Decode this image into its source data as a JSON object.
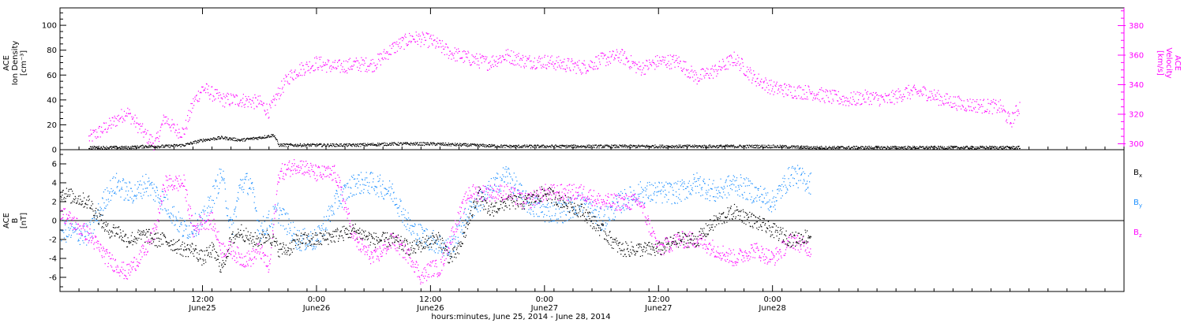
{
  "chart_data": [
    {
      "type": "scatter",
      "panel": "top",
      "ylabel_lines": [
        "ACE",
        "Ion Density",
        "[cm⁻³]"
      ],
      "ylabel_right_lines": [
        "ACE",
        "Velocity",
        "[km/s]"
      ],
      "ylim": [
        0,
        114
      ],
      "ylim_right": [
        296,
        392
      ],
      "yticks": [
        "0",
        "20",
        "40",
        "60",
        "80",
        "100"
      ],
      "yticks_right": [
        "300",
        "320",
        "340",
        "360",
        "380"
      ],
      "series": [
        {
          "axis": "left",
          "color": "#000000",
          "x_hours": [
            0,
            2,
            4,
            6,
            8,
            10,
            12,
            14,
            16,
            18,
            19.5,
            20,
            24,
            28,
            32,
            36,
            40,
            44,
            48,
            52,
            56,
            60,
            64,
            68,
            72,
            76,
            80,
            84,
            88,
            92,
            96,
            98
          ],
          "values": [
            2,
            2,
            2,
            3,
            3,
            4,
            8,
            10,
            8,
            10,
            12,
            4,
            4,
            4,
            5,
            5,
            4,
            3,
            3,
            3,
            3,
            3,
            3,
            3,
            3,
            2,
            2,
            2,
            2,
            2,
            2,
            2
          ]
        },
        {
          "axis": "right",
          "color": "#ff00ff",
          "x_hours": [
            0,
            2,
            4,
            6,
            7,
            8,
            9,
            10,
            11,
            12,
            14,
            16,
            18,
            19,
            20,
            21,
            22,
            24,
            26,
            28,
            30,
            32,
            34,
            36,
            38,
            40,
            42,
            44,
            46,
            48,
            50,
            52,
            54,
            56,
            58,
            60,
            62,
            64,
            66,
            68,
            70,
            72,
            74,
            76,
            78,
            80,
            82,
            84,
            86,
            88,
            90,
            92,
            94,
            96,
            97,
            98
          ],
          "values": [
            304,
            312,
            322,
            306,
            300,
            318,
            310,
            308,
            328,
            338,
            330,
            330,
            328,
            322,
            335,
            345,
            350,
            355,
            352,
            354,
            354,
            365,
            372,
            370,
            362,
            358,
            355,
            360,
            356,
            356,
            354,
            352,
            357,
            360,
            351,
            356,
            356,
            345,
            350,
            358,
            345,
            338,
            336,
            335,
            332,
            330,
            332,
            330,
            335,
            335,
            330,
            327,
            326,
            325,
            315,
            326
          ]
        }
      ]
    },
    {
      "type": "scatter",
      "panel": "bottom",
      "ylabel_lines": [
        "ACE",
        "B",
        "[nT]"
      ],
      "ylim": [
        -7.5,
        7.5
      ],
      "yticks": [
        "-6",
        "-4",
        "-2",
        "0",
        "2",
        "4",
        "6"
      ],
      "xlim_hours": [
        -3,
        109
      ],
      "xticks": [
        {
          "hour": 12,
          "time": "12:00",
          "date": "June25"
        },
        {
          "hour": 24,
          "time": "0:00",
          "date": "June26"
        },
        {
          "hour": 36,
          "time": "12:00",
          "date": "June26"
        },
        {
          "hour": 48,
          "time": "0:00",
          "date": "June27"
        },
        {
          "hour": 60,
          "time": "12:00",
          "date": "June27"
        },
        {
          "hour": 72,
          "time": "0:00",
          "date": "June28"
        }
      ],
      "xlabel": "hours:minutes, June 25, 2014 - June 28, 2014",
      "series": [
        {
          "name": "Bx",
          "color": "#000000",
          "x_hours": [
            -3,
            0,
            2,
            3,
            4,
            6,
            7,
            8,
            10,
            11,
            12,
            13,
            14,
            15,
            16,
            17,
            18,
            19,
            20,
            21,
            22,
            24,
            26,
            28,
            30,
            32,
            34,
            36,
            37,
            38,
            39,
            40,
            41,
            42,
            44,
            46,
            48,
            50,
            52,
            53,
            54,
            56,
            58,
            60,
            62,
            64,
            66,
            68,
            70,
            72,
            74,
            76
          ],
          "values": [
            3,
            2,
            -1,
            -1,
            -2,
            -1.5,
            -2,
            -2,
            -3,
            -3,
            -4,
            -3,
            -5,
            -2,
            -1,
            -2,
            -2,
            -1.5,
            -3,
            -3,
            -2,
            -2,
            -1.5,
            -1,
            -2,
            -2,
            -3,
            -2,
            -2,
            -4,
            -3,
            0,
            3,
            1,
            2,
            2,
            3,
            2,
            1,
            0,
            -1,
            -3,
            -3,
            -3,
            -2,
            -2,
            0,
            1,
            0,
            -1,
            -2,
            -1.5
          ]
        },
        {
          "name": "By",
          "color": "#1e90ff",
          "x_hours": [
            -3,
            0,
            2,
            3,
            4,
            5,
            6,
            8,
            10,
            12,
            14,
            15,
            16,
            17,
            18,
            19,
            20,
            22,
            24,
            26,
            28,
            30,
            32,
            34,
            36,
            38,
            40,
            42,
            44,
            46,
            48,
            50,
            52,
            54,
            56,
            58,
            60,
            62,
            64,
            66,
            68,
            70,
            72,
            74,
            76
          ],
          "values": [
            -1,
            -1.5,
            3,
            4,
            3,
            3,
            4,
            2,
            -1,
            0,
            5,
            -1,
            4,
            4,
            -1,
            0,
            1,
            -2,
            -2,
            2,
            4,
            4,
            3,
            -1,
            -2,
            -3,
            1,
            3,
            5,
            2,
            1,
            1,
            2,
            0,
            2,
            3,
            3,
            3,
            4,
            3,
            4,
            3,
            2,
            5,
            4
          ]
        },
        {
          "name": "Bz",
          "color": "#ff00ff",
          "x_hours": [
            -3,
            0,
            2,
            4,
            6,
            7,
            8,
            10,
            11,
            12,
            13,
            14,
            15,
            16,
            17,
            18,
            19,
            20,
            22,
            24,
            25,
            26,
            28,
            30,
            32,
            34,
            35,
            36,
            37,
            38,
            40,
            42,
            44,
            46,
            48,
            50,
            52,
            54,
            56,
            58,
            60,
            62,
            64,
            66,
            68,
            70,
            72,
            74,
            76
          ],
          "values": [
            1,
            -1.5,
            -4,
            -5.5,
            -3,
            -1,
            4,
            4,
            -1,
            0,
            0,
            -3,
            -3,
            -4,
            -4,
            -3,
            -5,
            5,
            6,
            5,
            5,
            5,
            -2,
            -4,
            -2,
            -4,
            -6,
            -5,
            -5,
            -2,
            3,
            3,
            3,
            2,
            3,
            3,
            3,
            2,
            2,
            2,
            -3,
            -2,
            -2,
            -3,
            -4,
            -3,
            -4,
            -2,
            -3
          ]
        }
      ]
    }
  ]
}
